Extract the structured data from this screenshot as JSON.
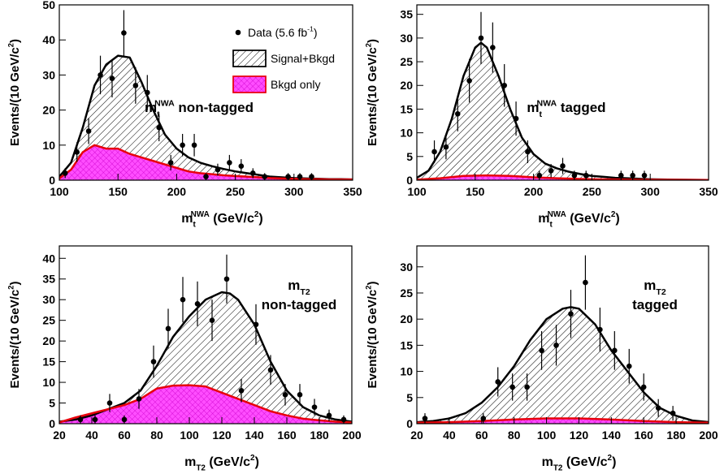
{
  "chart_data": [
    {
      "type": "scatter",
      "xlim": [
        100,
        350
      ],
      "xticks": [
        100,
        150,
        200,
        250,
        300,
        350
      ],
      "ylim": [
        0,
        50
      ],
      "yticks": [
        0,
        10,
        20,
        30,
        40,
        50
      ],
      "x_label": [
        {
          "text": "m"
        },
        {
          "text": "t",
          "style": "sub"
        },
        {
          "text": "NWA",
          "style": "sup"
        },
        {
          "text": " (GeV/c"
        },
        {
          "text": "2",
          "style": "sup"
        },
        {
          "text": ")"
        }
      ],
      "y_label": [
        {
          "text": "Events/(10 GeV/c"
        },
        {
          "text": "2",
          "style": "sup"
        },
        {
          "text": ")"
        }
      ],
      "annotation": [
        [
          {
            "text": "m"
          },
          {
            "text": "t",
            "style": "sub"
          },
          {
            "text": "NWA",
            "style": "sup"
          },
          {
            "text": " non-tagged"
          }
        ]
      ],
      "legend": true,
      "series": [
        {
          "name": [
            {
              "text": "Data (5.6 fb"
            },
            {
              "text": "-1",
              "style": "sup"
            },
            {
              "text": ")"
            }
          ],
          "kind": "points",
          "color": "#000000",
          "x": [
            105,
            115,
            125,
            135,
            145,
            155,
            165,
            175,
            185,
            195,
            205,
            215,
            225,
            235,
            245,
            255,
            265,
            275,
            295,
            305,
            315
          ],
          "values": [
            2,
            8,
            14,
            30,
            29,
            42,
            27,
            25,
            15,
            5,
            10,
            10,
            1,
            3,
            5,
            4,
            2,
            1,
            1,
            1,
            1
          ],
          "errors": [
            1.4,
            2.8,
            3.7,
            5.5,
            5.4,
            6.5,
            5.2,
            5,
            3.9,
            2.2,
            3.2,
            3.2,
            1,
            1.7,
            2.2,
            2,
            1.4,
            1,
            1,
            1,
            1
          ]
        },
        {
          "name": [
            {
              "text": "Signal+Bkgd"
            }
          ],
          "kind": "area",
          "color": "#000000",
          "fill": "#ffffff",
          "pattern": "hatch",
          "x": [
            100,
            110,
            120,
            130,
            140,
            150,
            160,
            170,
            180,
            190,
            200,
            210,
            220,
            230,
            240,
            250,
            260,
            270,
            280,
            290,
            300,
            310,
            320,
            330,
            340,
            350
          ],
          "values": [
            1,
            5,
            15,
            27,
            33,
            35.5,
            35,
            28,
            20,
            13,
            9,
            6.5,
            5,
            4,
            3.2,
            2.5,
            2,
            1.5,
            1,
            0.8,
            0.6,
            0.5,
            0.4,
            0.3,
            0.3,
            0.2
          ]
        },
        {
          "name": [
            {
              "text": "Bkgd only"
            }
          ],
          "kind": "area",
          "color": "#e8000b",
          "fill": "#ff4dff",
          "pattern": "cross",
          "x": [
            100,
            110,
            120,
            130,
            140,
            150,
            160,
            170,
            180,
            190,
            200,
            210,
            220,
            230,
            240,
            250,
            260,
            270,
            280,
            290,
            300,
            310,
            320,
            330,
            340,
            350
          ],
          "values": [
            0.5,
            3,
            8,
            10,
            9,
            9,
            7.5,
            6.5,
            5.5,
            4.5,
            3.5,
            2.5,
            2,
            1.7,
            1.4,
            1.2,
            1,
            0.8,
            0.6,
            0.5,
            0.4,
            0.3,
            0.3,
            0.2,
            0.2,
            0.2
          ]
        }
      ]
    },
    {
      "type": "scatter",
      "xlim": [
        100,
        350
      ],
      "xticks": [
        100,
        150,
        200,
        250,
        300,
        350
      ],
      "ylim": [
        0,
        37
      ],
      "yticks": [
        0,
        5,
        10,
        15,
        20,
        25,
        30,
        35
      ],
      "x_label": [
        {
          "text": "m"
        },
        {
          "text": "t",
          "style": "sub"
        },
        {
          "text": "NWA",
          "style": "sup"
        },
        {
          "text": " (GeV/c"
        },
        {
          "text": "2",
          "style": "sup"
        },
        {
          "text": ")"
        }
      ],
      "y_label": [
        {
          "text": "Events/(10 GeV/c"
        },
        {
          "text": "2",
          "style": "sup"
        },
        {
          "text": ")"
        }
      ],
      "annotation": [
        [
          {
            "text": "m"
          },
          {
            "text": "t",
            "style": "sub"
          },
          {
            "text": "NWA",
            "style": "sup"
          },
          {
            "text": " tagged"
          }
        ]
      ],
      "legend": false,
      "series": [
        {
          "kind": "points",
          "color": "#000000",
          "x": [
            115,
            125,
            135,
            145,
            155,
            165,
            175,
            185,
            195,
            205,
            215,
            225,
            235,
            245,
            275,
            285,
            295
          ],
          "values": [
            6,
            7,
            14,
            21,
            30,
            28,
            20,
            13,
            6,
            1,
            2,
            3,
            1,
            1,
            1,
            1,
            1
          ],
          "errors": [
            2.4,
            2.6,
            3.7,
            4.6,
            5.5,
            5.3,
            4.5,
            3.6,
            2.4,
            1,
            1.4,
            1.7,
            1,
            1,
            1,
            1,
            1
          ]
        },
        {
          "kind": "area",
          "color": "#000000",
          "fill": "#ffffff",
          "pattern": "hatch",
          "x": [
            100,
            110,
            120,
            130,
            140,
            150,
            155,
            160,
            170,
            180,
            190,
            200,
            210,
            220,
            230,
            240,
            250,
            260,
            270,
            280,
            290,
            300,
            320,
            350
          ],
          "values": [
            0.5,
            2,
            6,
            13,
            22,
            28,
            29,
            28,
            22,
            15,
            9,
            5.5,
            3.5,
            2.5,
            1.8,
            1.3,
            0.9,
            0.7,
            0.5,
            0.4,
            0.3,
            0.2,
            0.1,
            0.05
          ]
        },
        {
          "kind": "area",
          "color": "#e8000b",
          "fill": "#ff4dff",
          "pattern": "cross",
          "x": [
            100,
            120,
            140,
            160,
            180,
            200,
            220,
            250,
            300,
            350
          ],
          "values": [
            0.1,
            0.4,
            0.9,
            1,
            0.9,
            0.6,
            0.4,
            0.2,
            0.1,
            0.05
          ]
        }
      ]
    },
    {
      "type": "scatter",
      "xlim": [
        20,
        200
      ],
      "xticks": [
        20,
        40,
        60,
        80,
        100,
        120,
        140,
        160,
        180,
        200
      ],
      "ylim": [
        0,
        43
      ],
      "yticks": [
        0,
        5,
        10,
        15,
        20,
        25,
        30,
        35,
        40
      ],
      "x_label": [
        {
          "text": "m"
        },
        {
          "text": "T2",
          "style": "sub"
        },
        {
          "text": " (GeV/c"
        },
        {
          "text": "2",
          "style": "sup"
        },
        {
          "text": ")"
        }
      ],
      "y_label": [
        {
          "text": "Events/(10 GeV/c"
        },
        {
          "text": "2",
          "style": "sup"
        },
        {
          "text": ")"
        }
      ],
      "annotation": [
        [
          {
            "text": "m"
          },
          {
            "text": "T2",
            "style": "sub"
          }
        ],
        [
          {
            "text": "non-tagged"
          }
        ]
      ],
      "legend": false,
      "series": [
        {
          "kind": "points",
          "color": "#000000",
          "x": [
            33,
            42,
            51,
            60,
            69,
            78,
            87,
            96,
            105,
            114,
            123,
            132,
            141,
            150,
            159,
            168,
            177,
            186,
            195
          ],
          "values": [
            1,
            1,
            5,
            1,
            6,
            15,
            23,
            30,
            29,
            25,
            35,
            8,
            24,
            13,
            7,
            7,
            4,
            2,
            1
          ],
          "errors": [
            1,
            1,
            2.2,
            1,
            2.4,
            3.9,
            4.8,
            5.5,
            5.4,
            5,
            5.9,
            2.8,
            4.9,
            3.6,
            2.6,
            2.6,
            2,
            1.4,
            1
          ]
        },
        {
          "kind": "area",
          "color": "#000000",
          "fill": "#ffffff",
          "pattern": "hatch",
          "x": [
            20,
            30,
            40,
            50,
            60,
            70,
            80,
            90,
            100,
            110,
            120,
            125,
            130,
            140,
            150,
            160,
            170,
            180,
            190,
            200
          ],
          "values": [
            0.5,
            1,
            2,
            3.5,
            5,
            8,
            14,
            21,
            26,
            30,
            31.8,
            31.5,
            30,
            24,
            15,
            8,
            4,
            2,
            1,
            0.5
          ]
        },
        {
          "kind": "area",
          "color": "#e8000b",
          "fill": "#ff4dff",
          "pattern": "cross",
          "x": [
            20,
            30,
            40,
            50,
            60,
            70,
            80,
            90,
            100,
            110,
            120,
            130,
            140,
            150,
            160,
            170,
            180,
            190,
            200
          ],
          "values": [
            0.3,
            1.5,
            2.5,
            3.5,
            4.5,
            6,
            8.5,
            9.2,
            9.3,
            9,
            7.5,
            6,
            4.5,
            3,
            2,
            1.2,
            0.8,
            0.5,
            0.3
          ]
        }
      ]
    },
    {
      "type": "scatter",
      "xlim": [
        20,
        200
      ],
      "xticks": [
        20,
        40,
        60,
        80,
        100,
        120,
        140,
        160,
        180,
        200
      ],
      "ylim": [
        0,
        34
      ],
      "yticks": [
        0,
        5,
        10,
        15,
        20,
        25,
        30
      ],
      "x_label": [
        {
          "text": "m"
        },
        {
          "text": "T2",
          "style": "sub"
        },
        {
          "text": " (GeV/c"
        },
        {
          "text": "2",
          "style": "sup"
        },
        {
          "text": ")"
        }
      ],
      "y_label": [
        {
          "text": "Events/(10 GeV/c"
        },
        {
          "text": "2",
          "style": "sup"
        },
        {
          "text": ")"
        }
      ],
      "annotation": [
        [
          {
            "text": "m"
          },
          {
            "text": "T2",
            "style": "sub"
          }
        ],
        [
          {
            "text": "tagged"
          }
        ]
      ],
      "legend": false,
      "series": [
        {
          "kind": "points",
          "color": "#000000",
          "x": [
            25,
            61,
            70,
            79,
            88,
            97,
            106,
            115,
            124,
            133,
            142,
            151,
            160,
            169,
            178
          ],
          "values": [
            1,
            1,
            8,
            7,
            7,
            14,
            15,
            21,
            27,
            18,
            14,
            11,
            7,
            3,
            2
          ],
          "errors": [
            1,
            1,
            2.8,
            2.6,
            2.6,
            3.7,
            3.9,
            4.6,
            5.2,
            4.2,
            3.7,
            3.3,
            2.6,
            1.7,
            1.4
          ]
        },
        {
          "kind": "area",
          "color": "#000000",
          "fill": "#ffffff",
          "pattern": "hatch",
          "x": [
            20,
            30,
            40,
            50,
            60,
            70,
            80,
            90,
            100,
            110,
            115,
            120,
            130,
            140,
            150,
            160,
            170,
            180,
            190,
            200
          ],
          "values": [
            0.3,
            0.5,
            1,
            2,
            4,
            7,
            11,
            16,
            20,
            22,
            22.3,
            22,
            19,
            14,
            10,
            6,
            3,
            1.5,
            0.6,
            0.3
          ]
        },
        {
          "kind": "area",
          "color": "#e8000b",
          "fill": "#ff4dff",
          "pattern": "cross",
          "x": [
            20,
            40,
            60,
            80,
            100,
            120,
            140,
            160,
            180,
            200
          ],
          "values": [
            0.2,
            0.3,
            0.5,
            0.8,
            1,
            1,
            0.8,
            0.5,
            0.3,
            0.2
          ]
        }
      ]
    }
  ]
}
